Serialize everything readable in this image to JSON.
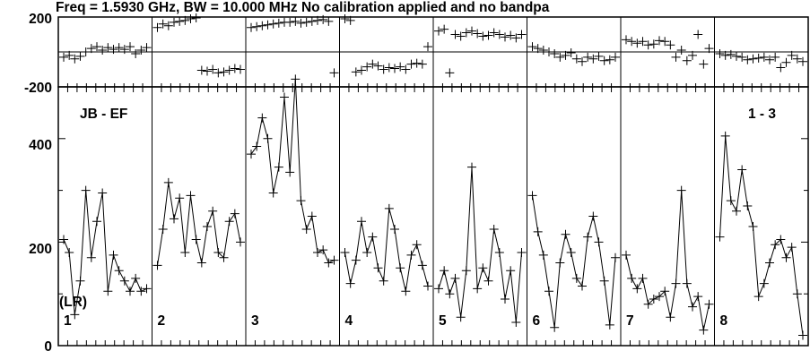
{
  "chart_data": {
    "type": "line",
    "title": "Freq = 1.5930 GHz, BW = 10.000 MHz No calibration applied and no bandpa",
    "baseline_label": "JB - EF",
    "polarization_label": "(LR)",
    "source_label": "1 - 3",
    "phase_panel": {
      "ylim": [
        -200,
        200
      ],
      "yticks": [
        "200",
        "-200"
      ]
    },
    "amp_panel": {
      "ylim": [
        0,
        500
      ],
      "yticks": [
        "400",
        "200",
        "0"
      ]
    },
    "channels": 10,
    "series": [
      {
        "name": "1",
        "amp": [
          205,
          180,
          60,
          125,
          300,
          170,
          240,
          295,
          105,
          175,
          145,
          125,
          105,
          130,
          105,
          110
        ],
        "phase": [
          -30,
          -20,
          -40,
          -25,
          0,
          20,
          30,
          10,
          25,
          15,
          25,
          15,
          30,
          -10,
          10,
          25
        ]
      },
      {
        "name": "2",
        "amp": [
          155,
          225,
          315,
          245,
          285,
          180,
          290,
          205,
          160,
          230,
          260,
          180,
          170,
          240,
          255,
          200
        ],
        "phase": [
          140,
          160,
          150,
          170,
          175,
          180,
          190,
          195,
          -105,
          -110,
          -100,
          -120,
          -115,
          -105,
          -95,
          -100
        ]
      },
      {
        "name": "3",
        "amp": [
          370,
          385,
          440,
          400,
          295,
          345,
          480,
          335,
          515,
          280,
          225,
          250,
          180,
          185,
          160,
          165
        ],
        "phase": [
          140,
          145,
          150,
          155,
          160,
          165,
          170,
          170,
          175,
          165,
          170,
          175,
          180,
          185,
          175,
          -120
        ]
      },
      {
        "name": "4",
        "amp": [
          180,
          120,
          165,
          240,
          180,
          210,
          150,
          125,
          265,
          225,
          150,
          105,
          175,
          195,
          155,
          115
        ],
        "phase": [
          190,
          180,
          -115,
          -105,
          -85,
          -70,
          -80,
          -100,
          -90,
          -95,
          -85,
          -100,
          -70,
          -65,
          -70,
          30
        ]
      },
      {
        "name": "5",
        "amp": [
          110,
          145,
          100,
          130,
          55,
          145,
          345,
          110,
          150,
          125,
          225,
          180,
          90,
          145,
          45,
          180
        ],
        "phase": [
          120,
          130,
          -120,
          100,
          90,
          110,
          120,
          105,
          90,
          95,
          110,
          100,
          85,
          95,
          80,
          100
        ]
      },
      {
        "name": "6",
        "amp": [
          290,
          220,
          175,
          105,
          35,
          160,
          215,
          180,
          130,
          115,
          210,
          250,
          200,
          125,
          40,
          170
        ],
        "phase": [
          30,
          20,
          10,
          0,
          -10,
          -30,
          -20,
          -5,
          -40,
          -55,
          -30,
          -40,
          -25,
          -50,
          -45,
          -30
        ]
      },
      {
        "name": "7",
        "amp": [
          175,
          130,
          110,
          130,
          80,
          90,
          95,
          105,
          55,
          120,
          300,
          120,
          75,
          95,
          30,
          80
        ],
        "phase": [
          70,
          60,
          50,
          60,
          40,
          45,
          65,
          60,
          40,
          -30,
          10,
          -50,
          -20,
          100,
          -70,
          20
        ]
      },
      {
        "name": "8",
        "amp": [
          210,
          405,
          280,
          260,
          340,
          270,
          230,
          95,
          120,
          160,
          195,
          205,
          170,
          190,
          100,
          20
        ],
        "phase": [
          -10,
          -20,
          -15,
          -25,
          -30,
          -45,
          -40,
          -35,
          -30,
          -45,
          -30,
          -90,
          -60,
          -20,
          -40,
          -55
        ]
      }
    ]
  }
}
